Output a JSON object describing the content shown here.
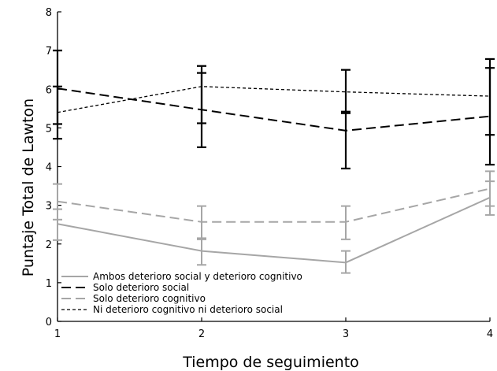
{
  "chart_data": {
    "type": "line",
    "title": "",
    "xlabel": "Tiempo de seguimiento",
    "ylabel": "Puntaje Total de Lawton",
    "x": [
      1,
      2,
      3,
      4
    ],
    "xlim": [
      1,
      4
    ],
    "ylim": [
      0,
      8
    ],
    "yticks": [
      0,
      1,
      2,
      3,
      4,
      5,
      6,
      7,
      8
    ],
    "grid": false,
    "legend_position": "bottom-left",
    "series": [
      {
        "name": "Ambos deterioro social y deterioro cognitivo",
        "color": "#a6a6a6",
        "style": "solid",
        "values": [
          2.52,
          1.82,
          1.52,
          3.2
        ],
        "err_low": [
          2.1,
          1.46,
          1.25,
          2.75
        ],
        "err_high": [
          2.9,
          2.15,
          1.82,
          3.62
        ]
      },
      {
        "name": "Solo deterioro social",
        "color": "#000000",
        "style": "long-dash",
        "values": [
          6.02,
          5.47,
          4.93,
          5.3
        ],
        "err_low": [
          5.1,
          4.5,
          3.95,
          4.05
        ],
        "err_high": [
          7.0,
          6.42,
          5.42,
          6.55
        ]
      },
      {
        "name": "Solo deterioro cognitivo",
        "color": "#a6a6a6",
        "style": "long-dash",
        "values": [
          3.1,
          2.57,
          2.57,
          3.43
        ],
        "err_low": [
          2.63,
          2.12,
          2.12,
          2.98
        ],
        "err_high": [
          3.55,
          2.98,
          2.98,
          3.88
        ]
      },
      {
        "name": "Ni deterioro cognitivo ni deterioro social",
        "color": "#000000",
        "style": "short-dash",
        "values": [
          5.4,
          6.07,
          5.93,
          5.82
        ],
        "err_low": [
          4.72,
          5.12,
          5.38,
          4.82
        ],
        "err_high": [
          6.07,
          6.6,
          6.5,
          6.78
        ]
      }
    ]
  }
}
